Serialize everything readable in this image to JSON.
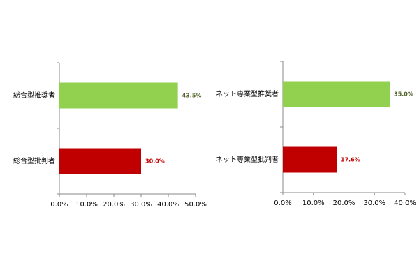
{
  "chart_data": [
    {
      "type": "hbar",
      "categories": [
        "総合型推奨者",
        "総合型批判者"
      ],
      "values": [
        43.5,
        30.0
      ],
      "value_labels": [
        "43.5%",
        "30.0%"
      ],
      "colors": [
        "#92d050",
        "#c00000"
      ],
      "label_colors": [
        "#4f6228",
        "#c00000"
      ],
      "xlim": [
        0,
        50
      ],
      "xticks": [
        {
          "value": 0,
          "label": "0.0%"
        },
        {
          "value": 10,
          "label": "10.0%"
        },
        {
          "value": 20,
          "label": "20.0%"
        },
        {
          "value": 30,
          "label": "30.0%"
        },
        {
          "value": 40,
          "label": "40.0%"
        },
        {
          "value": 50,
          "label": "50.0%"
        }
      ]
    },
    {
      "type": "hbar",
      "categories": [
        "ネット専業型推奨者",
        "ネット専業型批判者"
      ],
      "values": [
        35.0,
        17.6
      ],
      "value_labels": [
        "35.0%",
        "17.6%"
      ],
      "colors": [
        "#92d050",
        "#c00000"
      ],
      "label_colors": [
        "#4f6228",
        "#c00000"
      ],
      "xlim": [
        0,
        40
      ],
      "xticks": [
        {
          "value": 0,
          "label": "0.0%"
        },
        {
          "value": 10,
          "label": "10.0%"
        },
        {
          "value": 20,
          "label": "20.0%"
        },
        {
          "value": 30,
          "label": "30.0%"
        },
        {
          "value": 40,
          "label": "40.0%"
        }
      ]
    }
  ]
}
